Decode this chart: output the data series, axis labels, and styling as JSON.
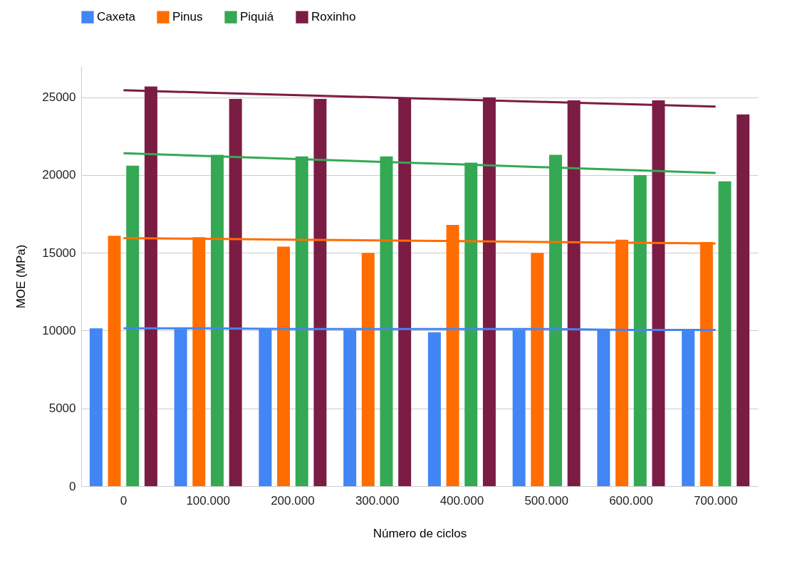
{
  "chart_data": {
    "type": "bar",
    "xlabel": "Número de ciclos",
    "ylabel": "MOE (MPa)",
    "categories": [
      "0",
      "100.000",
      "200.000",
      "300.000",
      "400.000",
      "500.000",
      "600.000",
      "700.000"
    ],
    "series": [
      {
        "name": "Caxeta",
        "color": "#4285f4",
        "values": [
          10150,
          10100,
          10100,
          10050,
          9900,
          10050,
          10050,
          10000
        ]
      },
      {
        "name": "Pinus",
        "color": "#ff6d01",
        "values": [
          16100,
          16000,
          15400,
          15000,
          16800,
          15000,
          15850,
          15700
        ]
      },
      {
        "name": "Piquiá",
        "color": "#34a853",
        "values": [
          20600,
          21300,
          21200,
          21200,
          20800,
          21300,
          20000,
          19600
        ]
      },
      {
        "name": "Roxinho",
        "color": "#7b1c45",
        "values": [
          25700,
          24900,
          24900,
          24950,
          25000,
          24800,
          24800,
          23900
        ]
      },
      {
        "type": "line",
        "color": "#4285f4",
        "values": [
          10150,
          10150,
          10100,
          10100,
          10100,
          10100,
          10050,
          10050
        ]
      },
      {
        "type": "line",
        "color": "#ff6d01",
        "values": [
          15950,
          15900,
          15850,
          15800,
          15750,
          15700,
          15650,
          15600
        ]
      },
      {
        "type": "line",
        "color": "#34a853",
        "values": [
          21400,
          21220,
          21040,
          20860,
          20680,
          20500,
          20320,
          20140
        ]
      },
      {
        "type": "line",
        "color": "#7b1c45",
        "values": [
          25450,
          25300,
          25150,
          25000,
          24850,
          24700,
          24550,
          24400
        ]
      }
    ],
    "ylim": [
      0,
      27000
    ],
    "yticks": [
      0,
      5000,
      10000,
      15000,
      20000,
      25000
    ],
    "grid": "y",
    "legend": "top"
  }
}
